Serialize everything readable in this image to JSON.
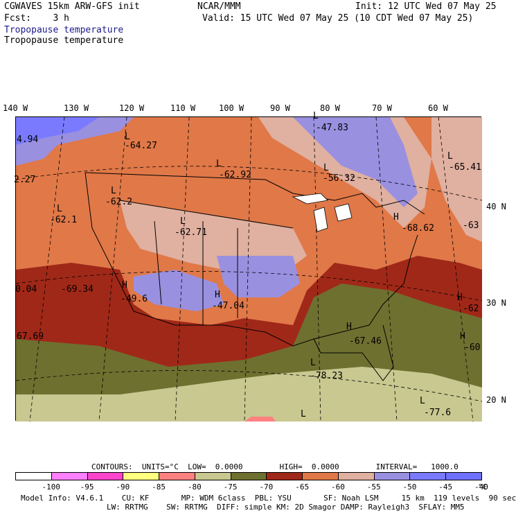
{
  "header": {
    "model": "CGWAVES 15km ARW-GFS init",
    "org": "NCAR/MMM",
    "init": "Init: 12 UTC Wed 07 May 25",
    "fcst": "Fcst:    3 h",
    "valid": "Valid: 15 UTC Wed 07 May 25 (10 CDT Wed 07 May 25)",
    "field1": "Tropopause temperature",
    "field2": "Tropopause temperature"
  },
  "longitudes": [
    "140 W",
    "130 W",
    "120 W",
    "110 W",
    "100 W",
    "90 W",
    "80 W",
    "70 W",
    "60 W"
  ],
  "latitudes": [
    "40 N",
    "30 N",
    "20 N"
  ],
  "map_labels": [
    {
      "text": "4.94"
    },
    {
      "text": "-64.27"
    },
    {
      "text": "-62.92"
    },
    {
      "text": "-47.83"
    },
    {
      "text": "-56.32"
    },
    {
      "text": "-65.41"
    },
    {
      "text": "2.27"
    },
    {
      "text": "-62.2"
    },
    {
      "text": "-62.1"
    },
    {
      "text": "-62.71"
    },
    {
      "text": "-68.62"
    },
    {
      "text": "-63"
    },
    {
      "text": "0.04"
    },
    {
      "text": "-69.34"
    },
    {
      "text": "-49.6"
    },
    {
      "text": "-47.04"
    },
    {
      "text": "-62"
    },
    {
      "text": "67.69"
    },
    {
      "text": "-67.46"
    },
    {
      "text": "-60"
    },
    {
      "text": "-78.23"
    },
    {
      "text": "-77.6"
    }
  ],
  "map_markers": [
    {
      "text": "L"
    },
    {
      "text": "L"
    },
    {
      "text": "L"
    },
    {
      "text": "L"
    },
    {
      "text": "L"
    },
    {
      "text": "L"
    },
    {
      "text": "H"
    },
    {
      "text": "L"
    },
    {
      "text": "H"
    },
    {
      "text": "H"
    },
    {
      "text": "H"
    },
    {
      "text": "H"
    },
    {
      "text": "H"
    },
    {
      "text": "L"
    },
    {
      "text": "L"
    },
    {
      "text": "L"
    },
    {
      "text": "L"
    }
  ],
  "contours": "CONTOURS:  UNITS=°C  LOW=  0.0000        HIGH=  0.0000        INTERVAL=   1000.0",
  "colorbar": {
    "colors": [
      "#ffffff",
      "#ff80ff",
      "#ff44cc",
      "#ffff80",
      "#ff8080",
      "#c8c890",
      "#6e7030",
      "#a02818",
      "#e07848",
      "#e0b0a0",
      "#9a90e0",
      "#7a7aff",
      "#7070ff"
    ],
    "labels": [
      "-100",
      "-95",
      "-90",
      "-85",
      "-80",
      "-75",
      "-70",
      "-65",
      "-60",
      "-55",
      "-50",
      "-45",
      "-40"
    ],
    "unit": "°C"
  },
  "footer": {
    "line1": "Model Info: V4.6.1    CU: KF       MP: WDM 6class  PBL: YSU       SF: Noah LSM     15 km  119 levels  90 sec",
    "line2": "LW: RRTMG    SW: RRTMG  DIFF: simple KM: 2D Smagor DAMP: Rayleigh3  SFLAY: MM5"
  }
}
